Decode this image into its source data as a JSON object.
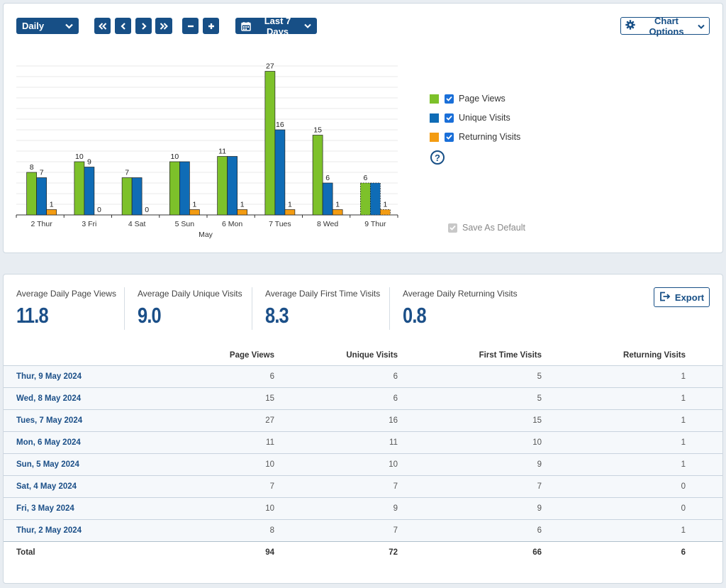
{
  "toolbar": {
    "interval": "Daily",
    "date_range": "Last 7 Days",
    "chart_options": "Chart Options"
  },
  "legend": {
    "items": [
      {
        "label": "Page Views",
        "color": "#7dc12a",
        "checked": true
      },
      {
        "label": "Unique Visits",
        "color": "#0f6cb6",
        "checked": true
      },
      {
        "label": "Returning Visits",
        "color": "#f39c12",
        "checked": true
      }
    ],
    "save_default": "Save As Default"
  },
  "chart_data": {
    "type": "bar",
    "categories": [
      "2 Thur",
      "3 Fri",
      "4 Sat",
      "5 Sun",
      "6 Mon",
      "7 Tues",
      "8 Wed",
      "9 Thur"
    ],
    "xlabel": "May",
    "series": [
      {
        "name": "Page Views",
        "color": "#7dc12a",
        "values": [
          8,
          10,
          7,
          10,
          11,
          27,
          15,
          6
        ]
      },
      {
        "name": "Unique Visits",
        "color": "#0f6cb6",
        "values": [
          7,
          9,
          7,
          10,
          11,
          16,
          6,
          6
        ]
      },
      {
        "name": "Returning Visits",
        "color": "#f39c12",
        "values": [
          1,
          0,
          0,
          1,
          1,
          1,
          1,
          1
        ]
      }
    ],
    "labels_shown": [
      [
        8,
        7,
        1
      ],
      [
        10,
        9,
        0
      ],
      [
        7,
        null,
        0
      ],
      [
        10,
        null,
        1
      ],
      [
        11,
        null,
        1
      ],
      [
        27,
        16,
        1
      ],
      [
        15,
        6,
        1
      ],
      [
        6,
        null,
        1
      ]
    ],
    "ylim": [
      0,
      28
    ],
    "grid": true,
    "last_category_partial": true
  },
  "stats": {
    "items": [
      {
        "label": "Average Daily Page Views",
        "value": "11.8"
      },
      {
        "label": "Average Daily Unique Visits",
        "value": "9.0"
      },
      {
        "label": "Average Daily First Time Visits",
        "value": "8.3"
      },
      {
        "label": "Average Daily Returning Visits",
        "value": "0.8"
      }
    ],
    "export": "Export"
  },
  "table": {
    "columns": [
      "",
      "Page Views",
      "Unique Visits",
      "First Time Visits",
      "Returning Visits"
    ],
    "rows": [
      [
        "Thur, 9 May 2024",
        "6",
        "6",
        "5",
        "1"
      ],
      [
        "Wed, 8 May 2024",
        "15",
        "6",
        "5",
        "1"
      ],
      [
        "Tues, 7 May 2024",
        "27",
        "16",
        "15",
        "1"
      ],
      [
        "Mon, 6 May 2024",
        "11",
        "11",
        "10",
        "1"
      ],
      [
        "Sun, 5 May 2024",
        "10",
        "10",
        "9",
        "1"
      ],
      [
        "Sat, 4 May 2024",
        "7",
        "7",
        "7",
        "0"
      ],
      [
        "Fri, 3 May 2024",
        "10",
        "9",
        "9",
        "0"
      ],
      [
        "Thur, 2 May 2024",
        "8",
        "7",
        "6",
        "1"
      ]
    ],
    "total": [
      "Total",
      "94",
      "72",
      "66",
      "6"
    ]
  }
}
